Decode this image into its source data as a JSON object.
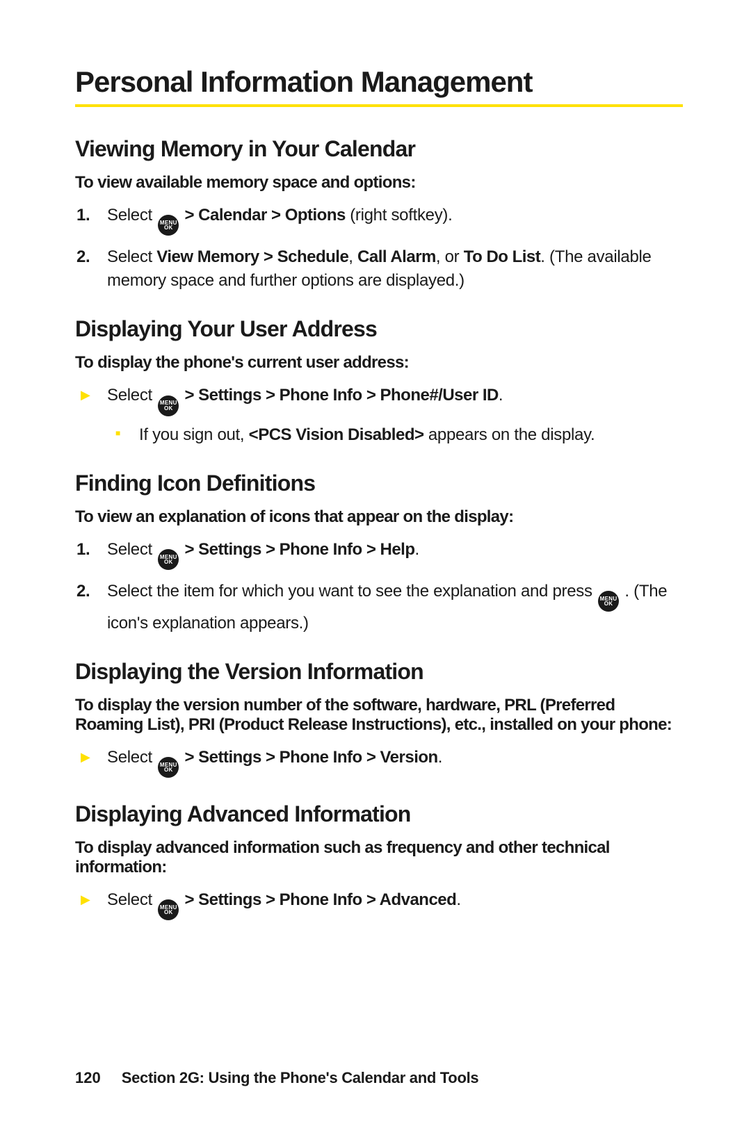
{
  "title": "Personal Information Management",
  "sections": [
    {
      "heading": "Viewing Memory in Your Calendar",
      "intro": "To view available memory space and options:"
    },
    {
      "heading": "Displaying Your User Address",
      "intro": "To display the phone's current user address:"
    },
    {
      "heading": "Finding Icon Definitions",
      "intro": "To view an explanation of icons that appear on the display:"
    },
    {
      "heading": "Displaying the Version Information",
      "intro": "To display the version number of the software, hardware, PRL (Preferred Roaming List), PRI (Product Release Instructions), etc., installed on your phone:"
    },
    {
      "heading": "Displaying Advanced Information",
      "intro": "To display advanced information such as frequency and other technical information:"
    }
  ],
  "s1_step1_a": "Select",
  "s1_step1_b": " > Calendar > Options",
  "s1_step1_c": " (right softkey).",
  "s1_step2_a": "Select ",
  "s1_step2_b": "View Memory > Schedule",
  "s1_step2_c": ", ",
  "s1_step2_d": "Call Alarm",
  "s1_step2_e": ", or ",
  "s1_step2_f": "To Do List",
  "s1_step2_g": ". (The available memory space and further options are displayed.)",
  "s2_step1_a": "Select",
  "s2_step1_b": " > Settings > Phone Info > Phone#/User ID",
  "s2_step1_c": ".",
  "s2_sub_a": "If you sign out, ",
  "s2_sub_b": "<PCS Vision Disabled>",
  "s2_sub_c": " appears on the display.",
  "s3_step1_a": "Select",
  "s3_step1_b": " > Settings > Phone Info > Help",
  "s3_step1_c": ".",
  "s3_step2_a": "Select the item for which you want to see the explanation and press ",
  "s3_step2_b": " . (The icon's explanation appears.)",
  "s4_step1_a": "Select",
  "s4_step1_b": " > Settings > Phone Info > Version",
  "s4_step1_c": ".",
  "s5_step1_a": "Select",
  "s5_step1_b": " > Settings > Phone Info > Advanced",
  "s5_step1_c": ".",
  "footer_page": "120",
  "footer_text": "Section 2G: Using the Phone's Calendar and Tools",
  "colors": {
    "accent": "#ffe100",
    "text": "#1a1a1a",
    "bg": "#ffffff"
  }
}
